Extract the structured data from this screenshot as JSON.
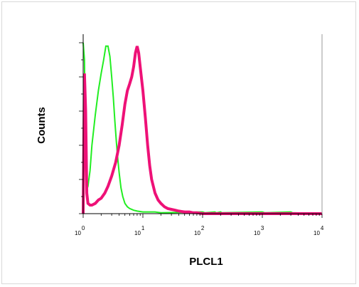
{
  "chart_data": {
    "type": "line",
    "title": "",
    "xlabel": "PLCL1",
    "ylabel": "Counts",
    "xscale": "log",
    "xlim": [
      1,
      10000
    ],
    "ylim": [
      0,
      100
    ],
    "x_ticks": [
      {
        "base": "10",
        "exp": "0"
      },
      {
        "base": "10",
        "exp": "1"
      },
      {
        "base": "10",
        "exp": "2"
      },
      {
        "base": "10",
        "exp": "3"
      },
      {
        "base": "10",
        "exp": "4"
      }
    ],
    "grid": false,
    "legend": "none",
    "series": [
      {
        "color": "#22ee22",
        "x": [
          1.0,
          1.05,
          1.1,
          1.15,
          1.2,
          1.3,
          1.4,
          1.6,
          1.8,
          2.0,
          2.2,
          2.4,
          2.6,
          2.8,
          3.0,
          3.2,
          3.4,
          3.6,
          3.8,
          4.0,
          4.3,
          4.6,
          5.0,
          5.5,
          6.0,
          7.0,
          8.0,
          10,
          13,
          16,
          20,
          100,
          110,
          160,
          170,
          200,
          210,
          1000,
          1100,
          3000,
          3200,
          10000
        ],
        "y": [
          100,
          90,
          30,
          14,
          16,
          25,
          40,
          58,
          72,
          82,
          90,
          98,
          98,
          92,
          80,
          68,
          54,
          42,
          32,
          24,
          15,
          10,
          6,
          4,
          3,
          2,
          1.5,
          1,
          1,
          1,
          0.5,
          1,
          0.5,
          1,
          0.5,
          1,
          0.5,
          1,
          0.5,
          1,
          0.5,
          0
        ]
      },
      {
        "color": "#ee1177",
        "x": [
          1.0,
          1.05,
          1.1,
          1.15,
          1.2,
          1.3,
          1.4,
          1.6,
          1.8,
          2.0,
          2.3,
          2.6,
          3.0,
          3.5,
          4.0,
          4.5,
          5.0,
          5.5,
          6.0,
          6.5,
          7.0,
          7.5,
          8.0,
          8.5,
          9.0,
          10,
          11,
          12,
          13,
          14,
          16,
          18,
          20,
          23,
          26,
          30,
          35,
          40,
          50,
          60,
          70,
          80,
          100,
          10000
        ],
        "y": [
          0,
          82,
          60,
          12,
          6,
          5,
          5,
          6,
          8,
          9,
          12,
          16,
          22,
          30,
          40,
          52,
          64,
          72,
          76,
          80,
          86,
          94,
          98,
          94,
          86,
          72,
          56,
          40,
          28,
          20,
          12,
          8,
          6,
          4,
          3,
          2.5,
          2,
          1.5,
          1,
          1,
          0.5,
          0.5,
          0,
          0
        ]
      }
    ]
  }
}
